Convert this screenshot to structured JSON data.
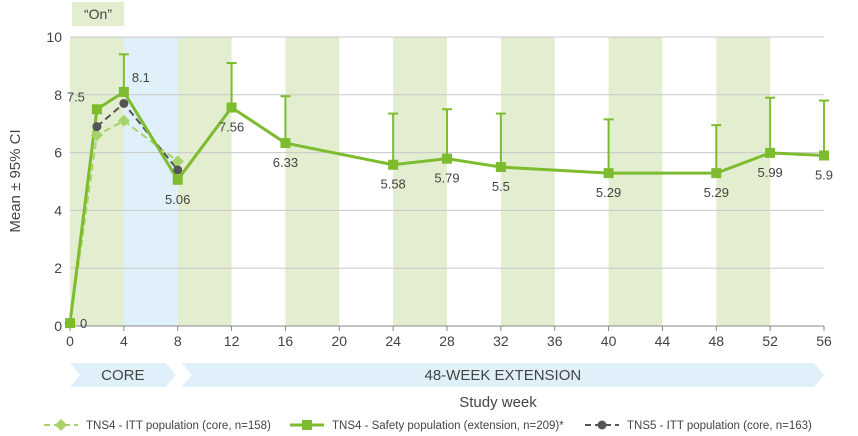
{
  "on_label": "“On”",
  "colors": {
    "on_band": "#e2eecf",
    "core_band": "#dff0fa",
    "green": "#7dbb2f",
    "green_light": "#a7d36b",
    "dark": "#555555",
    "grid": "#c8c8c8",
    "axis_text": "#444444"
  },
  "chart_data": {
    "type": "line",
    "xlabel": "Study week",
    "ylabel": "Mean ± 95% CI",
    "xlim": [
      0,
      56
    ],
    "ylim": [
      0,
      10
    ],
    "xticks": [
      0,
      4,
      8,
      12,
      16,
      20,
      24,
      28,
      32,
      36,
      40,
      44,
      48,
      52,
      56
    ],
    "yticks": [
      0,
      2,
      4,
      6,
      8,
      10
    ],
    "on_bands": [
      [
        0,
        4
      ],
      [
        8,
        12
      ],
      [
        16,
        20
      ],
      [
        24,
        28
      ],
      [
        32,
        36
      ],
      [
        40,
        44
      ],
      [
        48,
        52
      ]
    ],
    "core_band": [
      4,
      8
    ],
    "phases": [
      {
        "label": "CORE",
        "from": 0,
        "to": 8
      },
      {
        "label": "48-WEEK EXTENSION",
        "from": 8,
        "to": 56
      }
    ],
    "series": [
      {
        "name": "TNS4 - ITT population (core, n=158)",
        "style": "dashed-diamond",
        "x": [
          0,
          2,
          4,
          8
        ],
        "y": [
          0.1,
          6.6,
          7.1,
          5.7
        ]
      },
      {
        "name": "TNS4 - Safety population (extension, n=209)*",
        "style": "solid-square",
        "x": [
          0,
          2,
          4,
          8,
          12,
          16,
          24,
          28,
          32,
          40,
          48,
          52,
          56
        ],
        "y": [
          0.1,
          7.5,
          8.1,
          5.06,
          7.56,
          6.33,
          5.58,
          5.79,
          5.5,
          5.29,
          5.29,
          5.99,
          5.9
        ],
        "upper_ci": [
          null,
          null,
          9.4,
          null,
          9.1,
          7.95,
          7.35,
          7.5,
          7.35,
          7.15,
          6.95,
          7.9,
          7.8
        ]
      },
      {
        "name": "TNS5 - ITT population (core, n=163)",
        "style": "dashed-circle",
        "x": [
          2,
          4,
          8
        ],
        "y": [
          6.9,
          7.7,
          5.4
        ]
      }
    ],
    "data_labels": [
      {
        "text": "0",
        "x": 0,
        "y": 0.1,
        "pos": "right"
      },
      {
        "text": "7.5",
        "x": 2,
        "y": 7.5,
        "pos": "upper-left"
      },
      {
        "text": "8.1",
        "x": 4,
        "y": 8.1,
        "pos": "upper-right"
      },
      {
        "text": "5.06",
        "x": 8,
        "y": 5.06,
        "pos": "below"
      },
      {
        "text": "7.56",
        "x": 12,
        "y": 7.56,
        "pos": "below"
      },
      {
        "text": "6.33",
        "x": 16,
        "y": 6.33,
        "pos": "below"
      },
      {
        "text": "5.58",
        "x": 24,
        "y": 5.58,
        "pos": "below"
      },
      {
        "text": "5.79",
        "x": 28,
        "y": 5.79,
        "pos": "below"
      },
      {
        "text": "5.5",
        "x": 32,
        "y": 5.5,
        "pos": "below"
      },
      {
        "text": "5.29",
        "x": 40,
        "y": 5.29,
        "pos": "below"
      },
      {
        "text": "5.29",
        "x": 48,
        "y": 5.29,
        "pos": "below"
      },
      {
        "text": "5.99",
        "x": 52,
        "y": 5.99,
        "pos": "below"
      },
      {
        "text": "5.9",
        "x": 56,
        "y": 5.9,
        "pos": "below"
      }
    ],
    "legend_position": "bottom"
  }
}
